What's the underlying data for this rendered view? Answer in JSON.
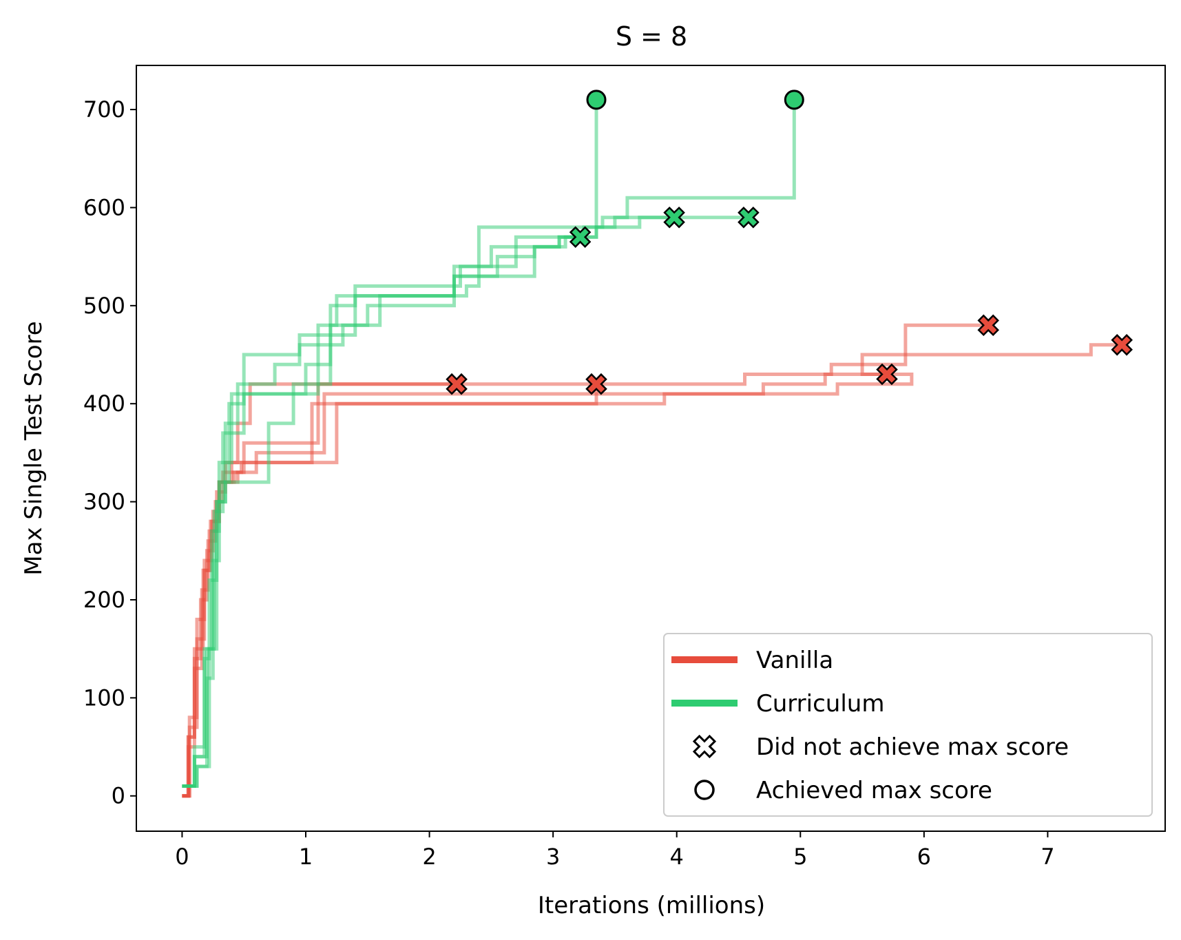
{
  "chart_data": {
    "type": "line",
    "step": true,
    "title": "S = 8",
    "xlabel": "Iterations (millions)",
    "ylabel": "Max Single Test Score",
    "xlim": [
      -0.37,
      7.95
    ],
    "ylim": [
      -36,
      745
    ],
    "xticks": [
      0,
      1,
      2,
      3,
      4,
      5,
      6,
      7
    ],
    "yticks": [
      0,
      100,
      200,
      300,
      400,
      500,
      600,
      700
    ],
    "grid": false,
    "legend_position": "lower-right",
    "colors": {
      "Vanilla": "#e74c3c",
      "Curriculum": "#2ecc71"
    },
    "legend": [
      {
        "label": "Vanilla",
        "kind": "line",
        "color": "#e74c3c"
      },
      {
        "label": "Curriculum",
        "kind": "line",
        "color": "#2ecc71"
      },
      {
        "label": "Did not achieve max score",
        "kind": "x-marker"
      },
      {
        "label": "Achieved max score",
        "kind": "o-marker"
      }
    ],
    "series": [
      {
        "name": "Vanilla",
        "points": [
          [
            0.0,
            0
          ],
          [
            0.05,
            60
          ],
          [
            0.1,
            140
          ],
          [
            0.15,
            200
          ],
          [
            0.2,
            250
          ],
          [
            0.25,
            290
          ],
          [
            0.3,
            320
          ],
          [
            0.4,
            340
          ],
          [
            0.45,
            380
          ],
          [
            0.55,
            420
          ],
          [
            2.22,
            420
          ]
        ],
        "end": "x"
      },
      {
        "name": "Vanilla",
        "points": [
          [
            0.0,
            0
          ],
          [
            0.06,
            70
          ],
          [
            0.12,
            160
          ],
          [
            0.18,
            230
          ],
          [
            0.22,
            270
          ],
          [
            0.28,
            310
          ],
          [
            0.35,
            340
          ],
          [
            0.5,
            360
          ],
          [
            1.1,
            360
          ],
          [
            1.1,
            420
          ],
          [
            3.35,
            420
          ]
        ],
        "end": "x"
      },
      {
        "name": "Vanilla",
        "points": [
          [
            0.0,
            0
          ],
          [
            0.05,
            50
          ],
          [
            0.1,
            130
          ],
          [
            0.16,
            210
          ],
          [
            0.21,
            260
          ],
          [
            0.27,
            300
          ],
          [
            0.33,
            330
          ],
          [
            0.6,
            350
          ],
          [
            1.15,
            350
          ],
          [
            1.15,
            410
          ],
          [
            3.35,
            410
          ],
          [
            3.35,
            420
          ],
          [
            4.55,
            420
          ],
          [
            4.55,
            430
          ],
          [
            5.25,
            430
          ],
          [
            5.25,
            440
          ],
          [
            5.5,
            440
          ],
          [
            5.5,
            450
          ],
          [
            5.85,
            450
          ],
          [
            5.85,
            480
          ],
          [
            6.52,
            480
          ]
        ],
        "end": "x"
      },
      {
        "name": "Vanilla",
        "points": [
          [
            0.0,
            0
          ],
          [
            0.06,
            80
          ],
          [
            0.12,
            180
          ],
          [
            0.18,
            240
          ],
          [
            0.24,
            280
          ],
          [
            0.3,
            320
          ],
          [
            0.45,
            330
          ],
          [
            0.5,
            340
          ],
          [
            1.25,
            340
          ],
          [
            1.25,
            400
          ],
          [
            3.9,
            400
          ],
          [
            3.9,
            410
          ],
          [
            5.3,
            410
          ],
          [
            5.3,
            420
          ],
          [
            5.9,
            420
          ],
          [
            5.9,
            430
          ],
          [
            5.5,
            430
          ],
          [
            5.5,
            440
          ],
          [
            5.85,
            440
          ],
          [
            5.85,
            450
          ],
          [
            7.35,
            450
          ],
          [
            7.35,
            460
          ],
          [
            7.6,
            460
          ]
        ],
        "end": "x"
      },
      {
        "name": "Vanilla",
        "points": [
          [
            0.0,
            0
          ],
          [
            0.05,
            60
          ],
          [
            0.1,
            150
          ],
          [
            0.17,
            230
          ],
          [
            0.23,
            280
          ],
          [
            0.3,
            320
          ],
          [
            0.42,
            330
          ],
          [
            0.48,
            340
          ],
          [
            1.05,
            340
          ],
          [
            1.05,
            400
          ],
          [
            3.35,
            400
          ],
          [
            3.35,
            410
          ],
          [
            4.7,
            410
          ],
          [
            4.7,
            420
          ],
          [
            5.2,
            420
          ],
          [
            5.2,
            430
          ],
          [
            5.7,
            430
          ]
        ],
        "end": "x"
      },
      {
        "name": "Curriculum",
        "points": [
          [
            0.0,
            10
          ],
          [
            0.1,
            40
          ],
          [
            0.18,
            140
          ],
          [
            0.22,
            220
          ],
          [
            0.28,
            300
          ],
          [
            0.35,
            380
          ],
          [
            0.45,
            420
          ],
          [
            0.75,
            440
          ],
          [
            0.95,
            470
          ],
          [
            1.4,
            470
          ],
          [
            1.4,
            520
          ],
          [
            2.25,
            520
          ],
          [
            2.25,
            540
          ],
          [
            2.5,
            540
          ],
          [
            2.5,
            560
          ],
          [
            3.05,
            560
          ],
          [
            3.05,
            570
          ],
          [
            3.35,
            570
          ],
          [
            3.35,
            710
          ]
        ],
        "end": "o"
      },
      {
        "name": "Curriculum",
        "points": [
          [
            0.0,
            10
          ],
          [
            0.12,
            30
          ],
          [
            0.2,
            120
          ],
          [
            0.25,
            240
          ],
          [
            0.3,
            320
          ],
          [
            0.38,
            400
          ],
          [
            0.5,
            450
          ],
          [
            0.95,
            450
          ],
          [
            0.95,
            460
          ],
          [
            1.3,
            460
          ],
          [
            1.3,
            480
          ],
          [
            1.6,
            480
          ],
          [
            1.6,
            510
          ],
          [
            2.3,
            510
          ],
          [
            2.3,
            520
          ],
          [
            2.4,
            520
          ],
          [
            2.4,
            580
          ],
          [
            3.4,
            580
          ],
          [
            3.4,
            590
          ],
          [
            3.6,
            590
          ],
          [
            3.6,
            610
          ],
          [
            4.95,
            610
          ],
          [
            4.95,
            710
          ]
        ],
        "end": "o"
      },
      {
        "name": "Curriculum",
        "points": [
          [
            0.0,
            10
          ],
          [
            0.1,
            50
          ],
          [
            0.18,
            150
          ],
          [
            0.24,
            270
          ],
          [
            0.3,
            340
          ],
          [
            0.4,
            410
          ],
          [
            0.6,
            410
          ],
          [
            0.9,
            420
          ],
          [
            1.1,
            480
          ],
          [
            1.25,
            510
          ],
          [
            2.2,
            510
          ],
          [
            2.2,
            530
          ],
          [
            2.55,
            530
          ],
          [
            2.55,
            550
          ],
          [
            2.85,
            550
          ],
          [
            2.85,
            560
          ],
          [
            3.1,
            560
          ],
          [
            3.1,
            570
          ],
          [
            3.22,
            570
          ]
        ],
        "end": "x"
      },
      {
        "name": "Curriculum",
        "points": [
          [
            0.0,
            10
          ],
          [
            0.1,
            40
          ],
          [
            0.2,
            150
          ],
          [
            0.26,
            290
          ],
          [
            0.33,
            370
          ],
          [
            0.5,
            410
          ],
          [
            0.8,
            410
          ],
          [
            1.0,
            440
          ],
          [
            1.2,
            500
          ],
          [
            1.4,
            510
          ],
          [
            2.2,
            510
          ],
          [
            2.2,
            540
          ],
          [
            2.7,
            540
          ],
          [
            2.7,
            570
          ],
          [
            3.35,
            570
          ],
          [
            3.35,
            580
          ],
          [
            3.5,
            580
          ],
          [
            3.5,
            590
          ],
          [
            3.98,
            590
          ]
        ],
        "end": "x"
      },
      {
        "name": "Curriculum",
        "points": [
          [
            0.0,
            10
          ],
          [
            0.12,
            30
          ],
          [
            0.22,
            150
          ],
          [
            0.28,
            300
          ],
          [
            0.35,
            320
          ],
          [
            0.5,
            320
          ],
          [
            0.7,
            380
          ],
          [
            0.9,
            410
          ],
          [
            1.1,
            420
          ],
          [
            1.2,
            480
          ],
          [
            1.5,
            500
          ],
          [
            2.2,
            500
          ],
          [
            2.2,
            530
          ],
          [
            2.85,
            530
          ],
          [
            2.85,
            560
          ],
          [
            3.05,
            560
          ],
          [
            3.05,
            570
          ],
          [
            3.25,
            570
          ],
          [
            3.25,
            580
          ],
          [
            3.7,
            580
          ],
          [
            3.7,
            590
          ],
          [
            4.58,
            590
          ]
        ],
        "end": "x"
      }
    ]
  }
}
